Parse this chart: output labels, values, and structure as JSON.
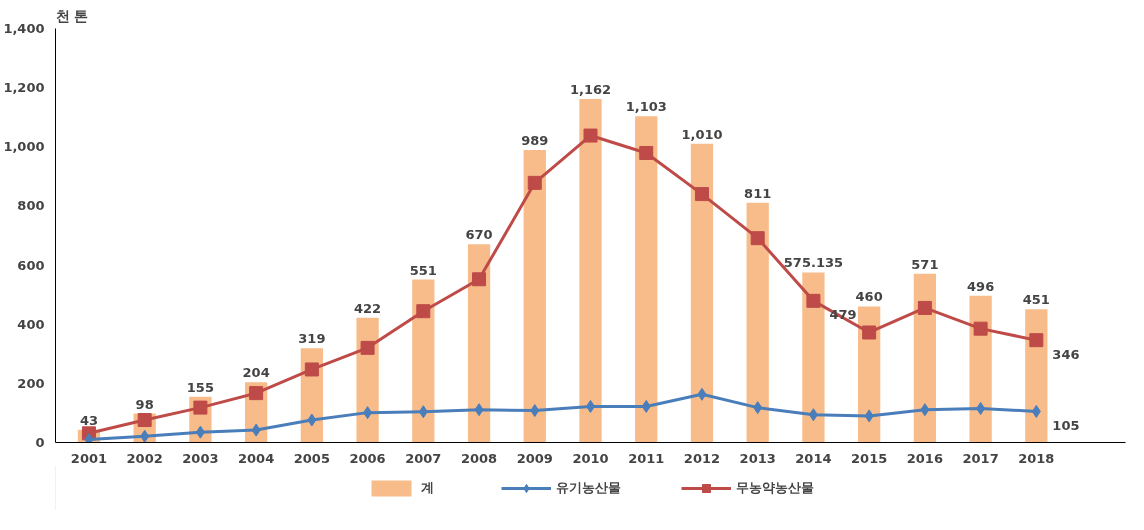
{
  "chart_data": {
    "type": "bar",
    "ylabel": "천 톤",
    "categories": [
      "2001",
      "2002",
      "2003",
      "2004",
      "2005",
      "2006",
      "2007",
      "2008",
      "2009",
      "2010",
      "2011",
      "2012",
      "2013",
      "2014",
      "2015",
      "2016",
      "2017",
      "2018"
    ],
    "ylim": [
      0,
      1400
    ],
    "yticks": [
      0,
      {
        "value": 200,
        "label": "200"
      },
      {
        "value": 400,
        "label": "400"
      },
      {
        "value": 600,
        "label": "600"
      },
      {
        "value": 800,
        "label": "800"
      },
      {
        "value": 1000,
        "label": "1,000"
      },
      {
        "value": 1200,
        "label": "1,200"
      },
      {
        "value": 1400,
        "label": "1,400"
      }
    ],
    "grid": false,
    "legend": "bottom",
    "series": [
      {
        "name": "계",
        "color": "#f7bc8a",
        "values": [
          43,
          98,
          155,
          204,
          319,
          422,
          551,
          670,
          989,
          1162,
          1103,
          1010,
          811,
          575.135,
          460,
          571,
          496,
          451
        ],
        "value_labels": [
          "43",
          "98",
          "155",
          "204",
          "319",
          "422",
          "551",
          "670",
          "989",
          "1,162",
          "1,103",
          "1,010",
          "811",
          "575.135",
          "460",
          "571",
          "496",
          "451"
        ]
      },
      {
        "name": "유기농산물",
        "type": "line",
        "color": "#4a7ebb",
        "marker": "diamond",
        "values": [
          10,
          21,
          35,
          42,
          76,
          101,
          104,
          111,
          108,
          122,
          122,
          163,
          118,
          94,
          90,
          111,
          115,
          105
        ],
        "value_labels": [
          null,
          null,
          null,
          null,
          null,
          null,
          null,
          null,
          null,
          null,
          null,
          null,
          null,
          null,
          null,
          null,
          null,
          "105"
        ]
      },
      {
        "name": "무농약농산물",
        "type": "line",
        "color": "#be4b48",
        "marker": "square",
        "values": [
          31,
          76,
          118,
          167,
          247,
          320,
          444,
          552,
          878,
          1038,
          979,
          840,
          691,
          479,
          372,
          455,
          385,
          346
        ],
        "value_labels": [
          null,
          null,
          null,
          null,
          null,
          null,
          null,
          null,
          null,
          null,
          null,
          null,
          null,
          "479",
          null,
          null,
          null,
          "346"
        ]
      }
    ]
  }
}
